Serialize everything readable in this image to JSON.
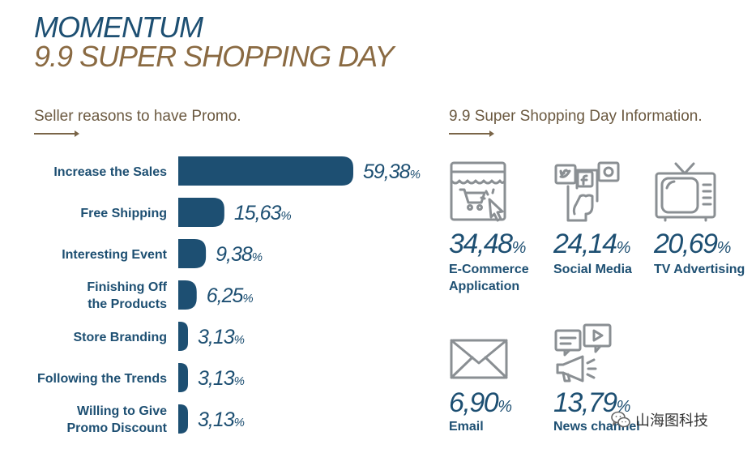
{
  "title": {
    "line1": "MOMENTUM",
    "line2": "9.9 SUPER SHOPPING DAY"
  },
  "colors": {
    "primary": "#1d4f72",
    "accent": "#8a6a42",
    "icon_gray": "#8a8f93"
  },
  "left_section": {
    "heading": "Seller reasons to have Promo."
  },
  "right_section": {
    "heading": "9.9 Super Shopping Day Information."
  },
  "chart_data": {
    "type": "bar",
    "orientation": "horizontal",
    "categories": [
      [
        "Increase the Sales"
      ],
      [
        "Free Shipping"
      ],
      [
        "Interesting Event"
      ],
      [
        "Finishing Off",
        "the Products"
      ],
      [
        "Store Branding"
      ],
      [
        "Following the Trends"
      ],
      [
        "Willing to Give",
        "Promo Discount"
      ]
    ],
    "values": [
      59.38,
      15.63,
      9.38,
      6.25,
      3.13,
      3.13,
      3.13
    ],
    "value_labels": [
      "59,38",
      "15,63",
      "9,38",
      "6,25",
      "3,13",
      "3,13",
      "3,13"
    ],
    "unit": "%",
    "xlim": [
      0,
      59.38
    ]
  },
  "info_items": [
    {
      "value": "34,48",
      "unit": "%",
      "label": [
        "E-Commerce",
        "Application"
      ],
      "icon": "online-store-icon"
    },
    {
      "value": "24,14",
      "unit": "%",
      "label": [
        "Social Media"
      ],
      "icon": "social-media-phone-icon"
    },
    {
      "value": "20,69",
      "unit": "%",
      "label": [
        "TV Advertising"
      ],
      "icon": "television-icon"
    },
    {
      "value": "6,90",
      "unit": "%",
      "label": [
        "Email"
      ],
      "icon": "envelope-icon"
    },
    {
      "value": "13,79",
      "unit": "%",
      "label": [
        "News channel"
      ],
      "icon": "megaphone-news-icon"
    }
  ],
  "watermark": {
    "text": "山海图科技",
    "icon": "wechat-icon"
  }
}
